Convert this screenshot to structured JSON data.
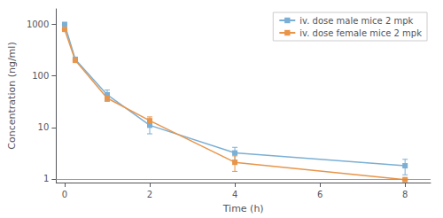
{
  "chart_data": {
    "type": "line",
    "xlabel": "Time (h)",
    "ylabel": "Concentration (ng/ml)",
    "x": [
      0,
      0.25,
      1,
      2,
      4,
      8
    ],
    "series": [
      {
        "name": "iv. dose male mice 2 mpk",
        "color": "#7bafd4",
        "values": [
          1000,
          210,
          43,
          11,
          3.2,
          1.8
        ],
        "error_low": [
          0,
          0,
          10,
          3.5,
          0.9,
          0.6
        ],
        "error_high": [
          0,
          0,
          10,
          3.5,
          0.9,
          0.6
        ]
      },
      {
        "name": "iv. dose female mice 2 mpk",
        "color": "#e8954a",
        "values": [
          800,
          200,
          37,
          13.5,
          2.1,
          0.97
        ],
        "error_low": [
          0,
          0,
          5,
          2.5,
          0.7,
          0.03
        ],
        "error_high": [
          0,
          0,
          5,
          2.5,
          0.7,
          0.03
        ]
      }
    ],
    "xlim": [
      -0.2,
      8.6
    ],
    "ylim": [
      0.85,
      2000
    ],
    "xticks": [
      0,
      2,
      4,
      6,
      8
    ],
    "yticks": [
      1,
      10,
      100,
      1000
    ],
    "log": "y",
    "grid": false,
    "legend": "upper right",
    "marker": "square",
    "hlines": [
      {
        "y": 1,
        "color": "#999999"
      }
    ]
  }
}
